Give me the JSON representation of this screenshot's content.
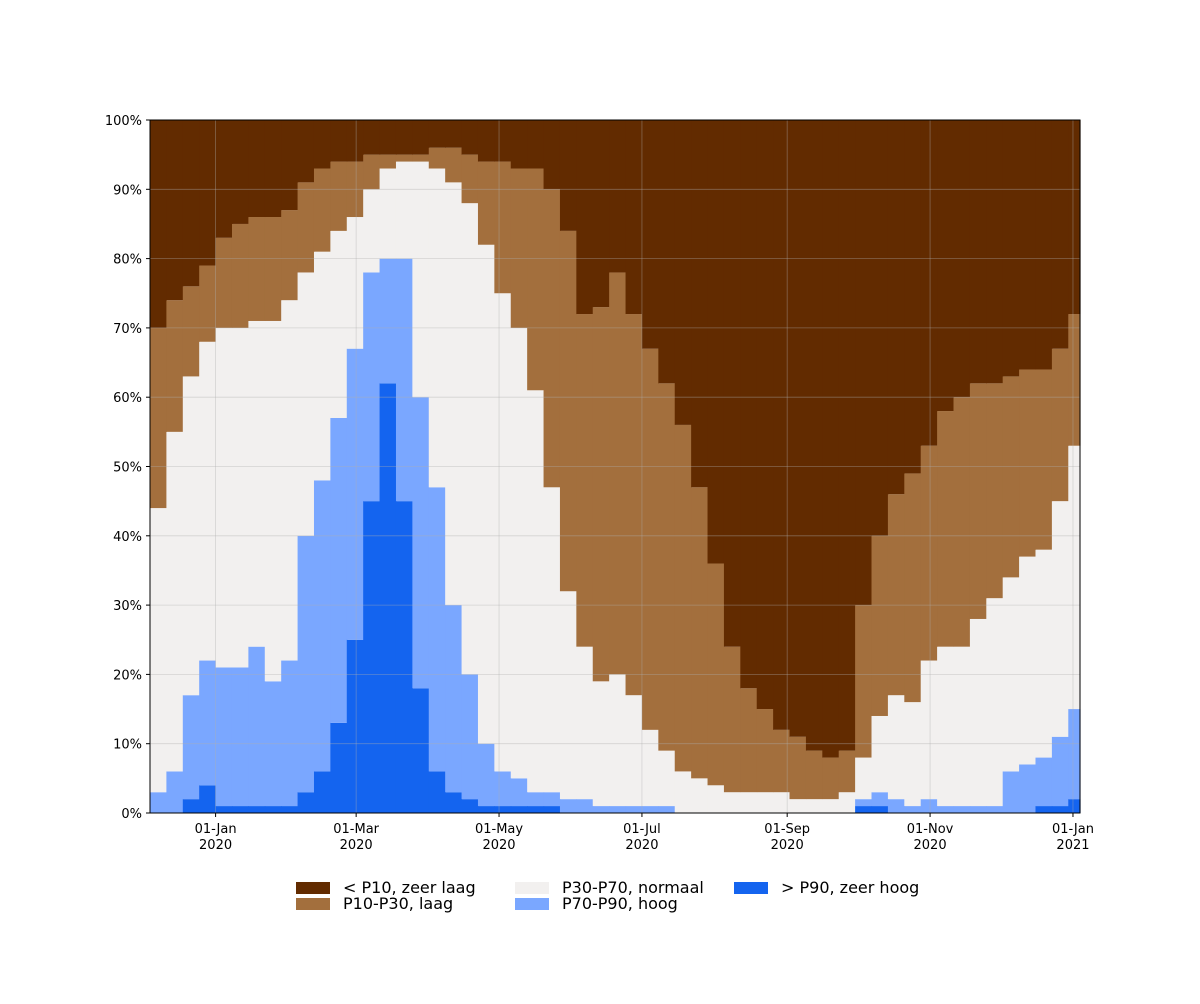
{
  "chart_data": {
    "type": "stacked-step-area",
    "x": [
      "2019-12-04",
      "2019-12-11",
      "2019-12-18",
      "2019-12-25",
      "2020-01-01",
      "2020-01-08",
      "2020-01-15",
      "2020-01-22",
      "2020-01-29",
      "2020-02-05",
      "2020-02-12",
      "2020-02-19",
      "2020-02-26",
      "2020-03-04",
      "2020-03-11",
      "2020-03-18",
      "2020-03-25",
      "2020-04-01",
      "2020-04-08",
      "2020-04-15",
      "2020-04-22",
      "2020-04-29",
      "2020-05-06",
      "2020-05-13",
      "2020-05-20",
      "2020-05-27",
      "2020-06-03",
      "2020-06-10",
      "2020-06-17",
      "2020-06-24",
      "2020-07-01",
      "2020-07-08",
      "2020-07-15",
      "2020-07-22",
      "2020-07-29",
      "2020-08-05",
      "2020-08-12",
      "2020-08-19",
      "2020-08-26",
      "2020-09-02",
      "2020-09-09",
      "2020-09-16",
      "2020-09-23",
      "2020-09-30",
      "2020-10-07",
      "2020-10-14",
      "2020-10-21",
      "2020-10-28",
      "2020-11-04",
      "2020-11-11",
      "2020-11-18",
      "2020-11-25",
      "2020-12-02",
      "2020-12-09",
      "2020-12-16",
      "2020-12-23",
      "2020-12-30"
    ],
    "series": [
      {
        "name": "> P90, zeer hoog",
        "color": "#1464ef",
        "values": [
          0,
          0,
          2,
          4,
          1,
          1,
          1,
          1,
          1,
          3,
          6,
          13,
          25,
          45,
          62,
          45,
          18,
          6,
          3,
          2,
          1,
          1,
          1,
          1,
          1,
          0,
          0,
          0,
          0,
          0,
          0,
          0,
          0,
          0,
          0,
          0,
          0,
          0,
          0,
          0,
          0,
          0,
          0,
          1,
          1,
          0,
          0,
          0,
          0,
          0,
          0,
          0,
          0,
          0,
          1,
          1,
          2
        ]
      },
      {
        "name": "P70-P90, hoog",
        "color": "#7aa7ff",
        "values": [
          3,
          6,
          15,
          18,
          20,
          20,
          23,
          18,
          21,
          37,
          42,
          44,
          42,
          33,
          18,
          35,
          42,
          41,
          27,
          18,
          9,
          5,
          4,
          2,
          2,
          2,
          2,
          1,
          1,
          1,
          1,
          1,
          0,
          0,
          0,
          0,
          0,
          0,
          0,
          0,
          0,
          0,
          0,
          1,
          2,
          2,
          1,
          2,
          1,
          1,
          1,
          1,
          6,
          7,
          7,
          10,
          13
        ]
      },
      {
        "name": "P30-P70, normaal",
        "color": "#f2f0ef",
        "values": [
          41,
          49,
          46,
          46,
          49,
          49,
          47,
          52,
          52,
          38,
          33,
          27,
          19,
          12,
          13,
          14,
          34,
          46,
          61,
          68,
          72,
          69,
          65,
          58,
          44,
          30,
          22,
          18,
          19,
          16,
          11,
          8,
          6,
          5,
          4,
          3,
          3,
          3,
          3,
          2,
          2,
          2,
          3,
          6,
          11,
          15,
          15,
          20,
          23,
          23,
          27,
          30,
          28,
          30,
          30,
          34,
          38
        ]
      },
      {
        "name": "P10-P30, laag",
        "color": "#a36f3d",
        "values": [
          26,
          19,
          13,
          11,
          13,
          15,
          15,
          15,
          13,
          13,
          12,
          10,
          8,
          5,
          2,
          1,
          1,
          3,
          5,
          7,
          12,
          19,
          23,
          32,
          43,
          52,
          48,
          54,
          58,
          55,
          55,
          53,
          50,
          42,
          32,
          21,
          15,
          12,
          9,
          9,
          7,
          6,
          6,
          22,
          26,
          29,
          33,
          31,
          34,
          36,
          34,
          31,
          29,
          27,
          26,
          22,
          19
        ]
      },
      {
        "name": "< P10, zeer laag",
        "color": "#622b00",
        "values": [
          30,
          26,
          24,
          21,
          17,
          15,
          14,
          14,
          13,
          9,
          7,
          6,
          6,
          5,
          5,
          5,
          5,
          4,
          4,
          5,
          6,
          6,
          7,
          7,
          10,
          16,
          28,
          27,
          22,
          28,
          33,
          38,
          44,
          53,
          64,
          76,
          82,
          85,
          88,
          89,
          91,
          92,
          91,
          70,
          60,
          54,
          51,
          47,
          42,
          40,
          38,
          38,
          37,
          36,
          36,
          33,
          28
        ]
      }
    ],
    "xlim": [
      "2019-12-04",
      "2021-01-04"
    ],
    "xticks": [
      {
        "value": "2020-01-01",
        "label": "01-Jan\n2020"
      },
      {
        "value": "2020-03-01",
        "label": "01-Mar\n2020"
      },
      {
        "value": "2020-05-01",
        "label": "01-May\n2020"
      },
      {
        "value": "2020-07-01",
        "label": "01-Jul\n2020"
      },
      {
        "value": "2020-09-01",
        "label": "01-Sep\n2020"
      },
      {
        "value": "2020-11-01",
        "label": "01-Nov\n2020"
      },
      {
        "value": "2021-01-01",
        "label": "01-Jan\n2021"
      }
    ],
    "ylim": [
      0,
      100
    ],
    "yticks": [
      {
        "value": 0,
        "label": "0%"
      },
      {
        "value": 10,
        "label": "10%"
      },
      {
        "value": 20,
        "label": "20%"
      },
      {
        "value": 30,
        "label": "30%"
      },
      {
        "value": 40,
        "label": "40%"
      },
      {
        "value": 50,
        "label": "50%"
      },
      {
        "value": 60,
        "label": "60%"
      },
      {
        "value": 70,
        "label": "70%"
      },
      {
        "value": 80,
        "label": "80%"
      },
      {
        "value": 90,
        "label": "90%"
      },
      {
        "value": 100,
        "label": "100%"
      }
    ],
    "grid": true,
    "legend": "bottom"
  }
}
